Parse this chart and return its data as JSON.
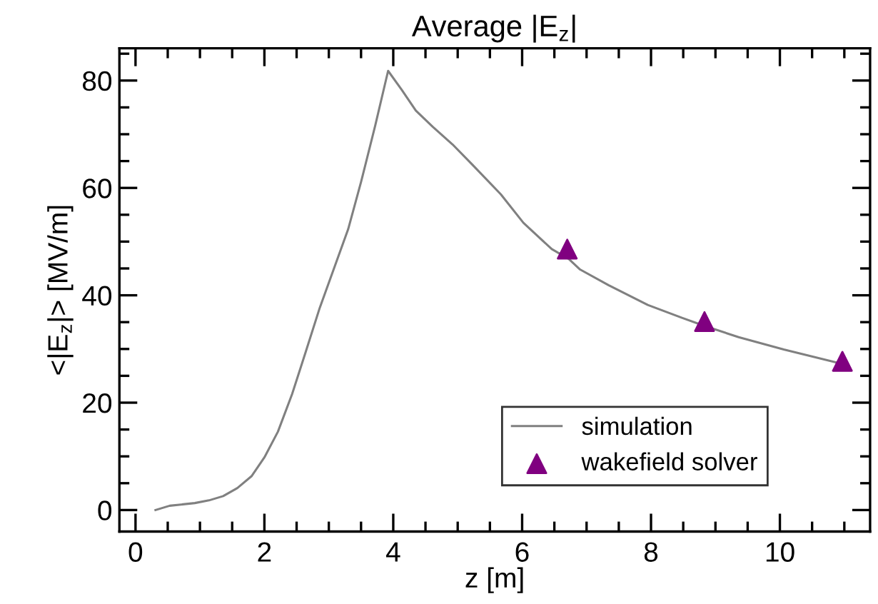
{
  "chart_data": {
    "type": "line",
    "title": "Average |E$_{z}$|",
    "xlabel": "z [m]",
    "ylabel": "<|E$_{z}$|> [MV/m]",
    "xlim": [
      -0.25,
      11.4
    ],
    "ylim": [
      -4,
      86
    ],
    "xticks": [
      0,
      2,
      4,
      6,
      8,
      10
    ],
    "yticks": [
      0,
      20,
      40,
      60,
      80
    ],
    "grid": false,
    "legend": "bottom right",
    "series": [
      {
        "name": "simulation",
        "color": "#808080",
        "marker": "none",
        "line_style": "solid",
        "x": [
          0.31,
          0.53,
          0.92,
          1.14,
          1.36,
          1.58,
          1.8,
          2.0,
          2.21,
          2.43,
          2.64,
          2.86,
          3.08,
          3.3,
          3.5,
          3.72,
          3.92,
          4.13,
          4.35,
          4.61,
          4.92,
          5.23,
          5.67,
          6.02,
          6.46,
          6.72,
          6.9,
          7.34,
          7.95,
          8.48,
          8.83,
          9.36,
          10.06,
          10.94
        ],
        "values": [
          0,
          0.8,
          1.3,
          1.8,
          2.6,
          4.1,
          6.3,
          9.8,
          14.6,
          21.6,
          29.4,
          37.7,
          45,
          52.3,
          61.1,
          71.6,
          81.8,
          78.3,
          74.4,
          71.4,
          68.1,
          64.3,
          58.8,
          53.5,
          48.6,
          46.8,
          44.8,
          41.9,
          38.2,
          35.8,
          34.3,
          32.2,
          29.9,
          27.3
        ]
      },
      {
        "name": "wakefield solver",
        "type": "scatter",
        "color": "#800080",
        "marker": "triangle",
        "x": [
          6.7,
          8.83,
          10.97
        ],
        "values": [
          48.6,
          35.1,
          27.7
        ]
      }
    ]
  }
}
